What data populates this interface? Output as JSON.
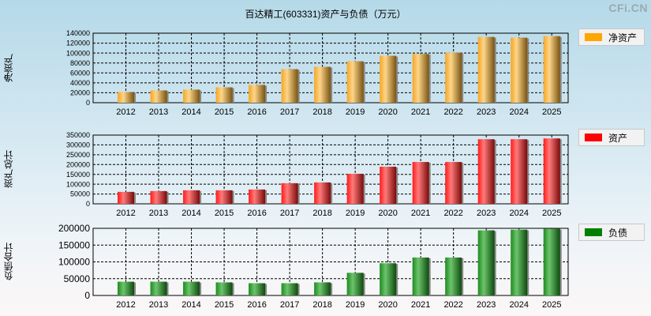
{
  "title": "百达精工(603331)资产与负债（万元）",
  "watermark": "CFi.CN",
  "chart_data": [
    {
      "type": "bar",
      "title": "百达精工(603331)资产与负债（万元）",
      "ylabel": "净资产",
      "legend": "净资产",
      "legend_placement": "right",
      "color": "#ffa500",
      "grid": true,
      "ylim": [
        0,
        140000
      ],
      "yticks": [
        0,
        20000,
        40000,
        60000,
        80000,
        100000,
        120000,
        140000
      ],
      "categories": [
        "2012",
        "2013",
        "2014",
        "2015",
        "2016",
        "2017",
        "2018",
        "2019",
        "2020",
        "2021",
        "2022",
        "2023",
        "2024",
        "2025"
      ],
      "values": [
        21600,
        24800,
        26400,
        31000,
        35900,
        67600,
        72300,
        83400,
        94500,
        98200,
        100800,
        132500,
        131000,
        134000
      ]
    },
    {
      "type": "bar",
      "ylabel": "资产总计",
      "legend": "资产",
      "legend_placement": "right",
      "color": "#ff0000",
      "grid": true,
      "ylim": [
        0,
        350000
      ],
      "yticks": [
        0,
        50000,
        100000,
        150000,
        200000,
        250000,
        300000,
        350000
      ],
      "categories": [
        "2012",
        "2013",
        "2014",
        "2015",
        "2016",
        "2017",
        "2018",
        "2019",
        "2020",
        "2021",
        "2022",
        "2023",
        "2024",
        "2025"
      ],
      "values": [
        61000,
        65000,
        69000,
        69000,
        73000,
        105000,
        109000,
        153000,
        189000,
        213000,
        213000,
        329000,
        329000,
        333000
      ]
    },
    {
      "type": "bar",
      "ylabel": "负债合计",
      "legend": "负债",
      "legend_placement": "right",
      "color": "#008000",
      "grid": true,
      "ylim": [
        0,
        200000
      ],
      "yticks": [
        0,
        50000,
        100000,
        150000,
        200000
      ],
      "categories": [
        "2012",
        "2013",
        "2014",
        "2015",
        "2016",
        "2017",
        "2018",
        "2019",
        "2020",
        "2021",
        "2022",
        "2023",
        "2024",
        "2025"
      ],
      "values": [
        41000,
        41000,
        41000,
        39000,
        36500,
        36500,
        39000,
        67500,
        96000,
        113000,
        113000,
        194000,
        196000,
        198500
      ]
    }
  ]
}
